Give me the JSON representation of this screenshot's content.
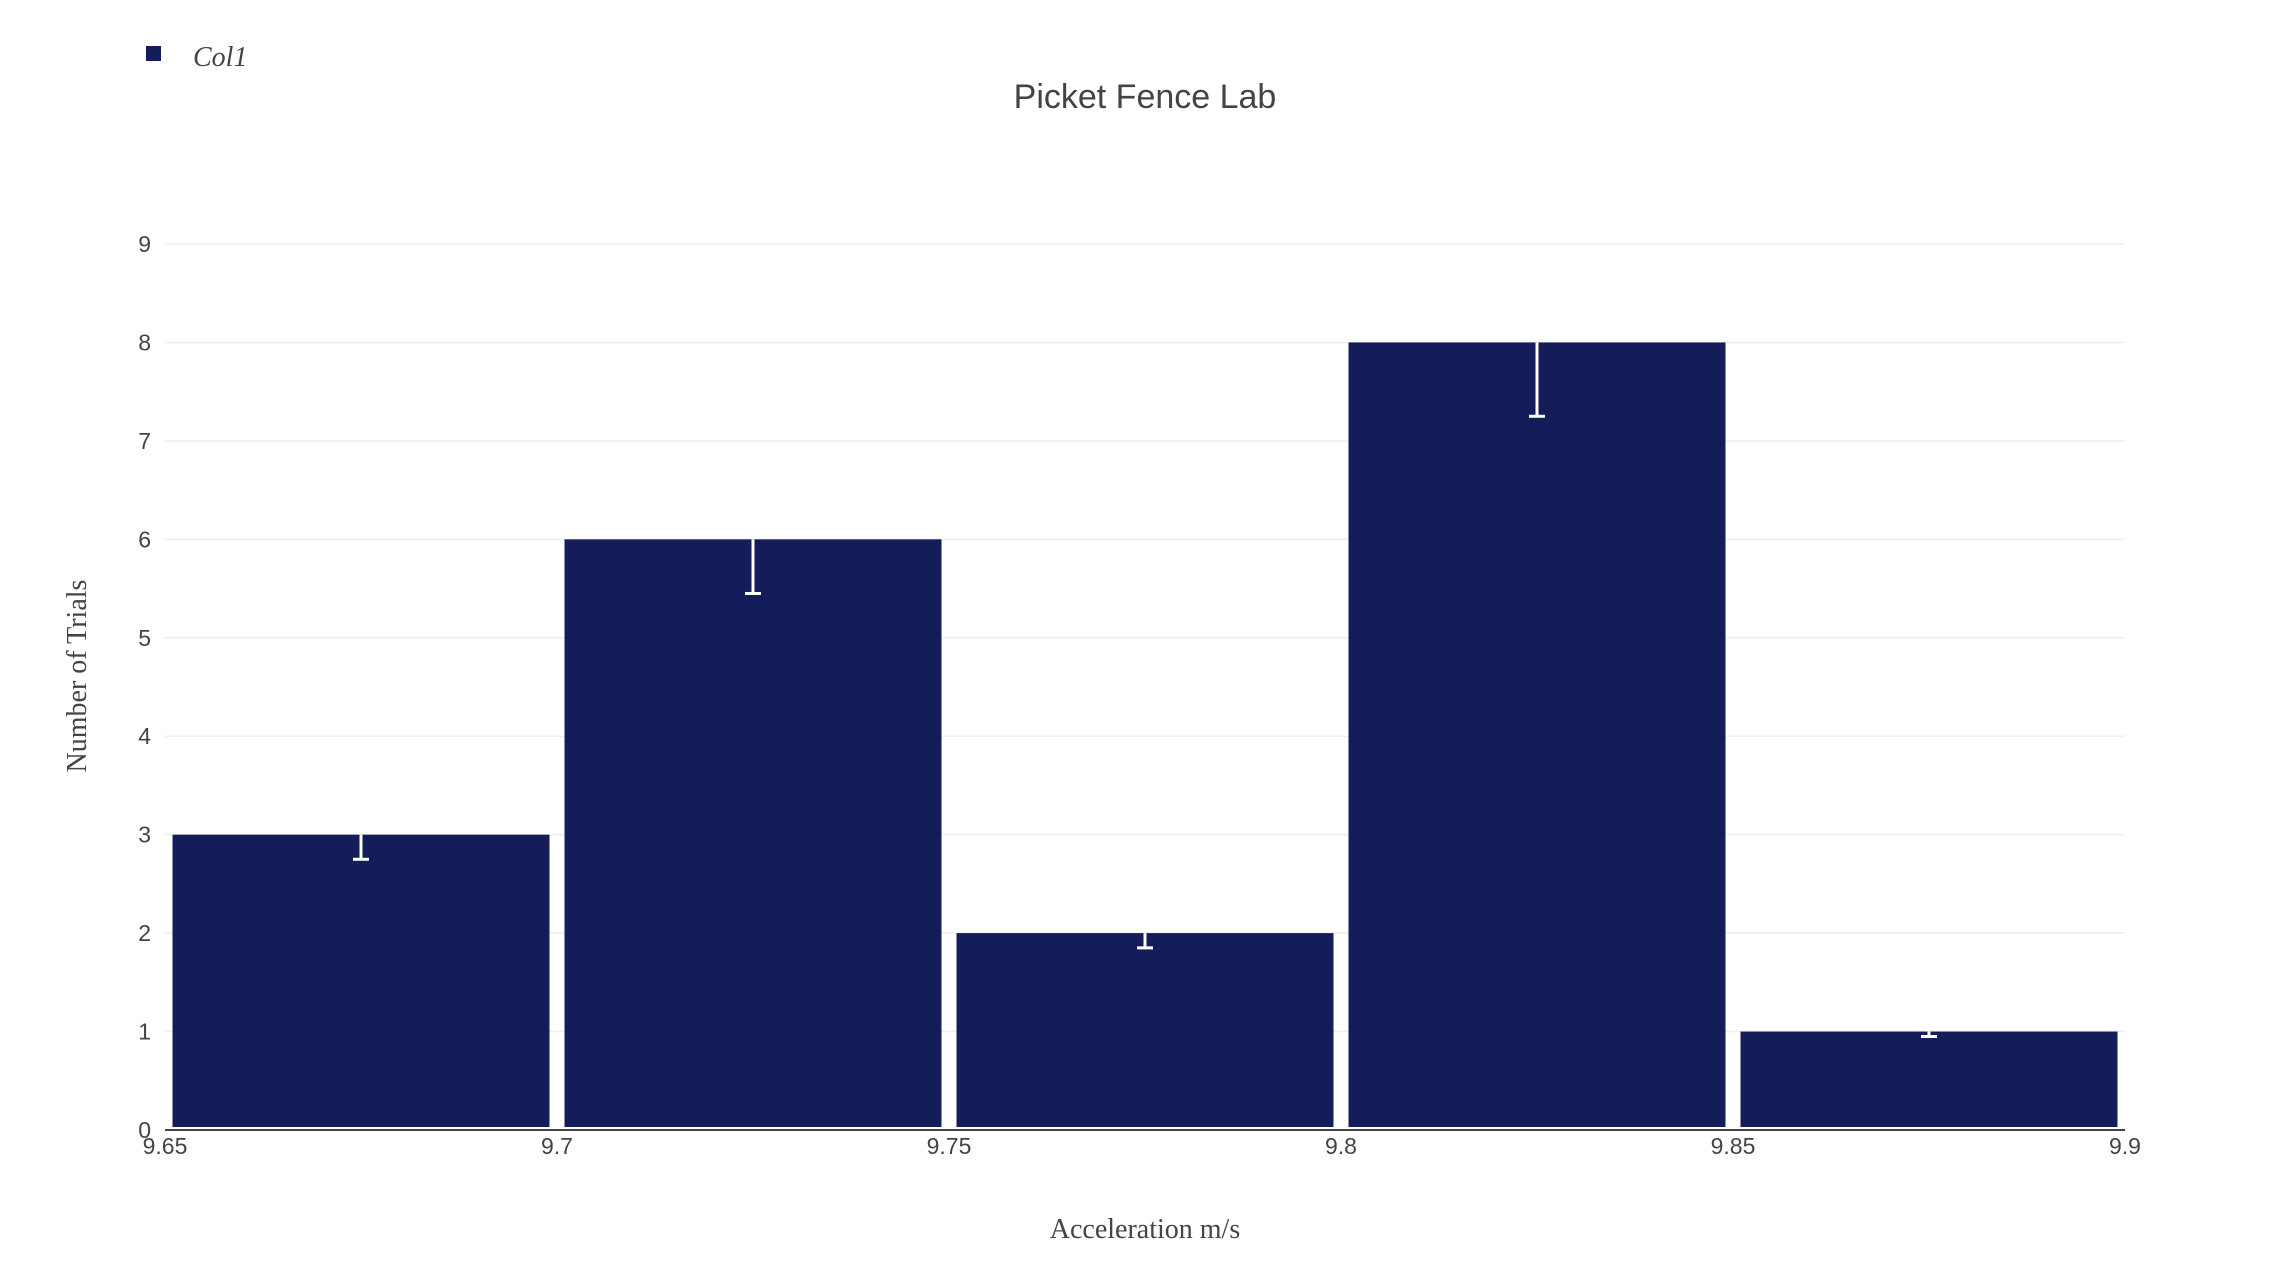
{
  "chart_data": {
    "type": "bar",
    "title": "Picket Fence Lab",
    "xlabel": "Acceleration m/s",
    "ylabel": "Number of Trials",
    "xlim": [
      9.65,
      9.9
    ],
    "ylim": [
      0,
      9
    ],
    "x_ticks": [
      "9.65",
      "9.7",
      "9.75",
      "9.8",
      "9.85",
      "9.9"
    ],
    "x_tick_values": [
      9.65,
      9.7,
      9.75,
      9.8,
      9.85,
      9.9
    ],
    "y_ticks": [
      "0",
      "1",
      "2",
      "3",
      "4",
      "5",
      "6",
      "7",
      "8",
      "9"
    ],
    "y_tick_values": [
      0,
      1,
      2,
      3,
      4,
      5,
      6,
      7,
      8,
      9
    ],
    "grid": true,
    "legend_position": "top-left",
    "bar_color": "#151c5a",
    "error_bar_color": "#ffffff",
    "series": [
      {
        "name": "Col1",
        "bins": [
          {
            "x0": 9.65,
            "x1": 9.7,
            "value": 3,
            "error_minus": 0.25
          },
          {
            "x0": 9.7,
            "x1": 9.75,
            "value": 6,
            "error_minus": 0.55
          },
          {
            "x0": 9.75,
            "x1": 9.8,
            "value": 2,
            "error_minus": 0.15
          },
          {
            "x0": 9.8,
            "x1": 9.85,
            "value": 8,
            "error_minus": 0.75
          },
          {
            "x0": 9.85,
            "x1": 9.9,
            "value": 1,
            "error_minus": 0.05
          }
        ]
      }
    ]
  }
}
